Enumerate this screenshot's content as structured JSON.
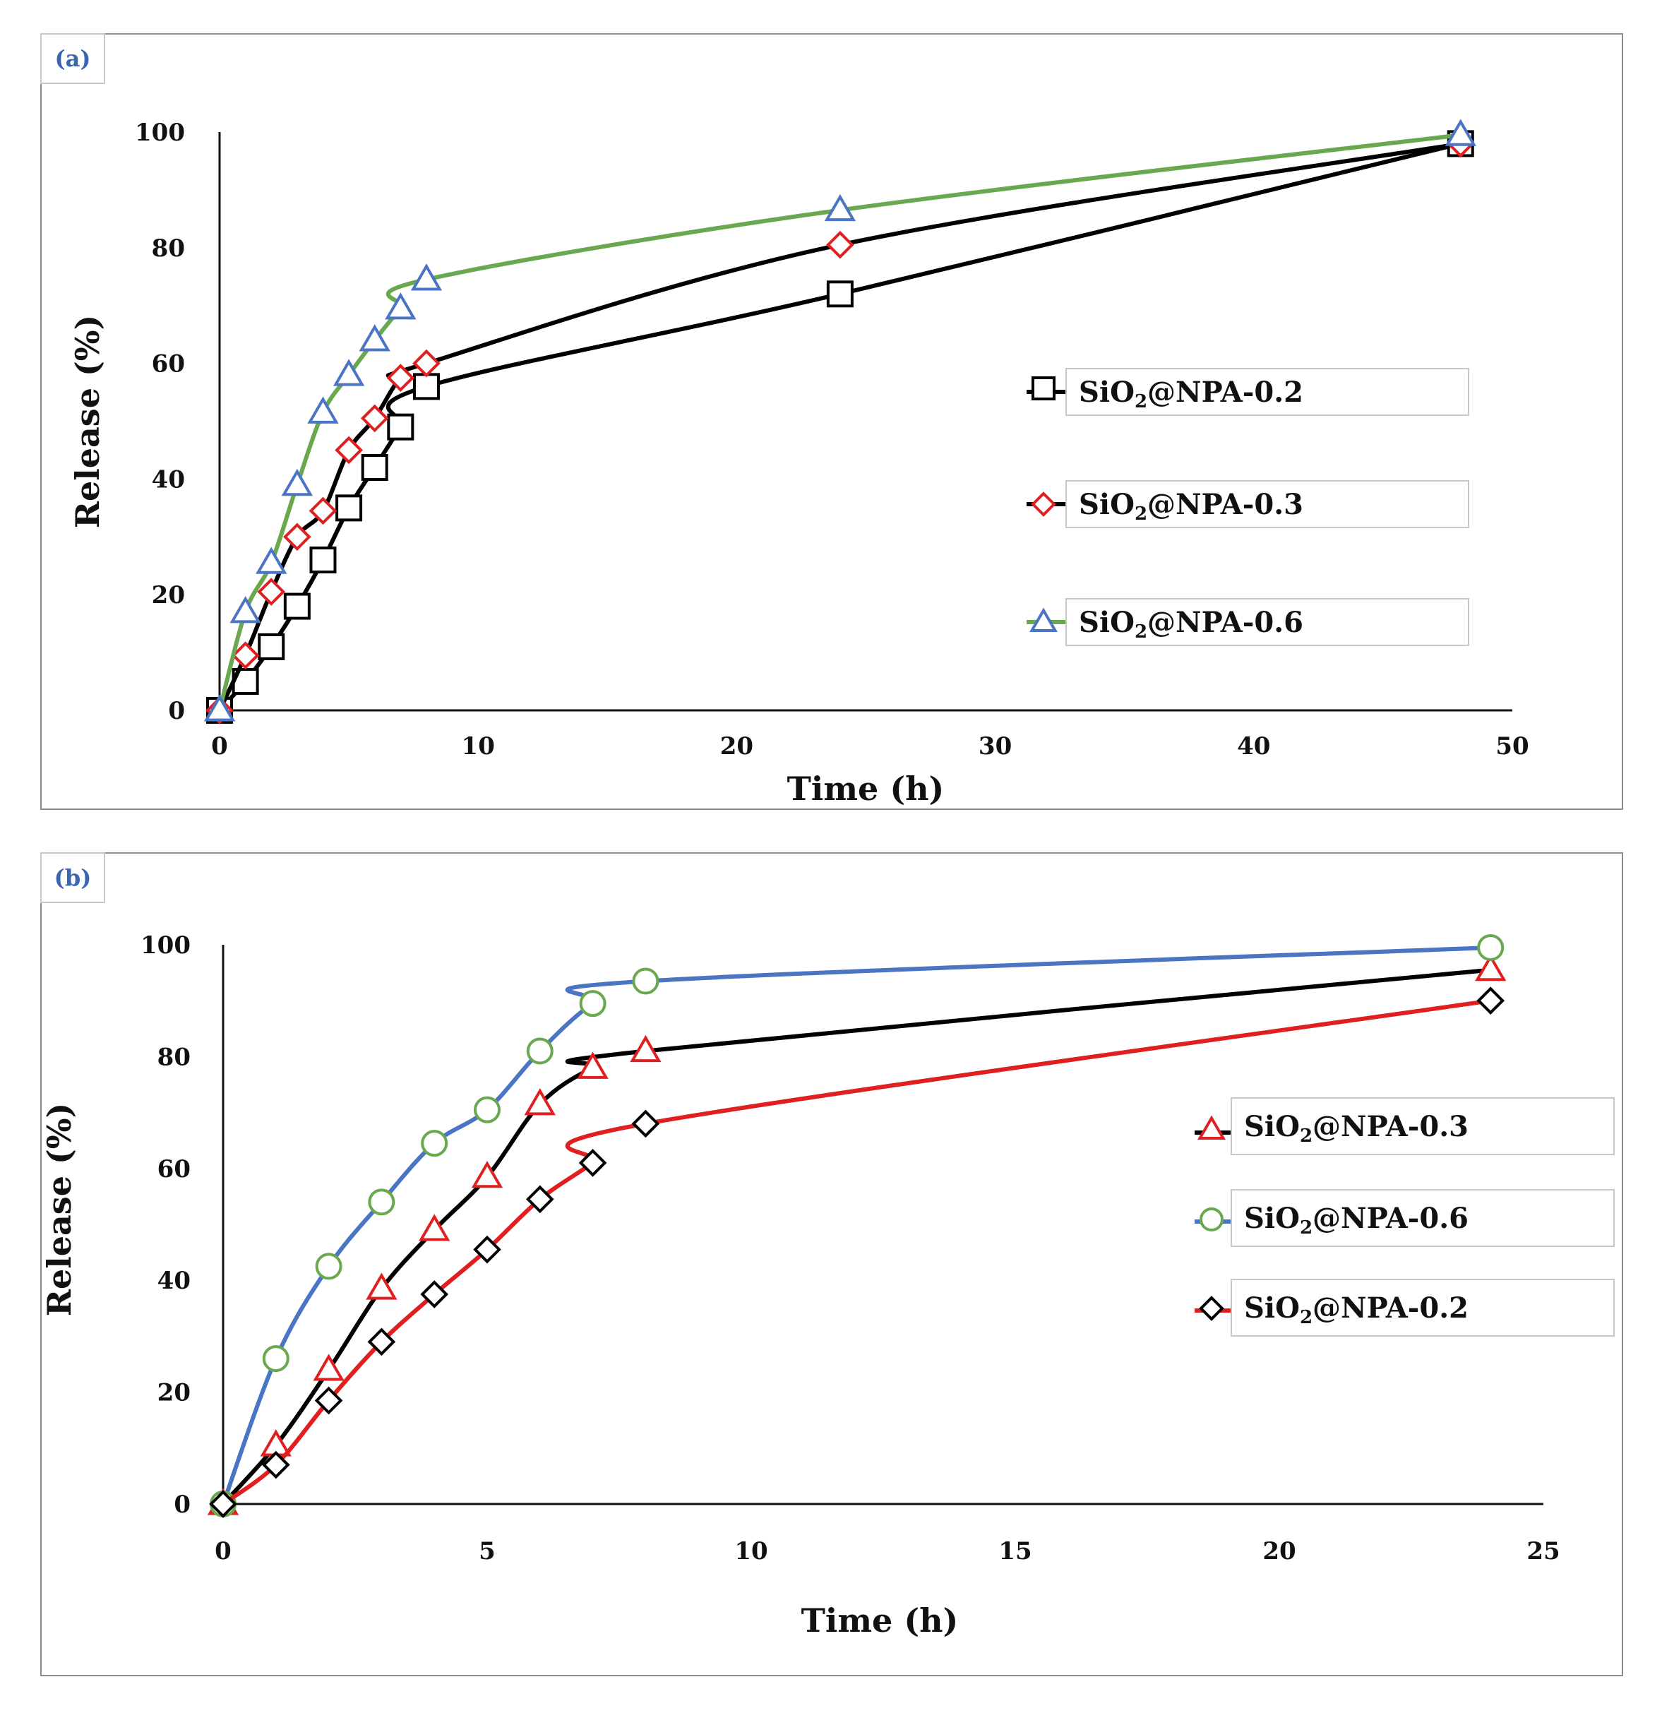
{
  "chart_data": [
    {
      "panel": "(a)",
      "type": "line",
      "xlabel": "Time (h)",
      "ylabel": "Release (%)",
      "xlim": [
        0,
        50
      ],
      "ylim": [
        0,
        100
      ],
      "xticks": [
        "0",
        "10",
        "20",
        "30",
        "40",
        "50"
      ],
      "yticks": [
        "0",
        "20",
        "40",
        "60",
        "80",
        "100"
      ],
      "legend_position": "right",
      "series": [
        {
          "name": "SiO",
          "sub": "2",
          "suffix": "@NPA-0.2",
          "marker": "square",
          "line": "#000000",
          "marker_color": "#000000",
          "x": [
            0,
            1,
            2,
            3,
            4,
            5,
            6,
            7,
            8,
            24,
            48
          ],
          "y": [
            0,
            5,
            11,
            18,
            26,
            35,
            42,
            49,
            56,
            72,
            98
          ]
        },
        {
          "name": "SiO",
          "sub": "2",
          "suffix": "@NPA-0.3",
          "marker": "diamond",
          "line": "#000000",
          "marker_color": "#e02020",
          "x": [
            0,
            1,
            2,
            3,
            4,
            5,
            6,
            7,
            8,
            24,
            48
          ],
          "y": [
            0,
            9.5,
            20.5,
            30,
            34.5,
            45,
            50.5,
            57.5,
            60,
            80.5,
            98
          ]
        },
        {
          "name": "SiO",
          "sub": "2",
          "suffix": "@NPA-0.6",
          "marker": "triangle",
          "line": "#6aa84f",
          "marker_color": "#4a74c4",
          "x": [
            0,
            1,
            2,
            3,
            4,
            5,
            6,
            7,
            8,
            24,
            48
          ],
          "y": [
            0,
            17,
            25.5,
            39,
            51.5,
            58,
            64,
            69.5,
            74.5,
            86.5,
            99.5
          ]
        }
      ]
    },
    {
      "panel": "(b)",
      "type": "line",
      "xlabel": "Time (h)",
      "ylabel": "Release (%)",
      "xlim": [
        0,
        25
      ],
      "ylim": [
        0,
        100
      ],
      "xticks": [
        "0",
        "5",
        "10",
        "15",
        "20",
        "25"
      ],
      "yticks": [
        "0",
        "20",
        "40",
        "60",
        "80",
        "100"
      ],
      "legend_position": "right",
      "series": [
        {
          "name": "SiO",
          "sub": "2",
          "suffix": "@NPA-0.3",
          "marker": "triangle",
          "line": "#000000",
          "marker_color": "#e02020",
          "x": [
            0,
            1,
            2,
            3,
            4,
            5,
            6,
            7,
            8,
            24
          ],
          "y": [
            0,
            10.5,
            24,
            38.5,
            49,
            58.5,
            71.5,
            78,
            81,
            95.5
          ]
        },
        {
          "name": "SiO",
          "sub": "2",
          "suffix": "@NPA-0.6",
          "marker": "circle",
          "line": "#4a74c4",
          "marker_color": "#6aa84f",
          "x": [
            0,
            1,
            2,
            3,
            4,
            5,
            6,
            7,
            8,
            24
          ],
          "y": [
            0,
            26,
            42.5,
            54,
            64.5,
            70.5,
            81,
            89.5,
            93.5,
            99.5
          ]
        },
        {
          "name": "SiO",
          "sub": "2",
          "suffix": "@NPA-0.2",
          "marker": "diamond",
          "line": "#e02020",
          "marker_color": "#000000",
          "x": [
            0,
            1,
            2,
            3,
            4,
            5,
            6,
            7,
            8,
            24
          ],
          "y": [
            0,
            7,
            18.5,
            29,
            37.5,
            45.5,
            54.5,
            61,
            68,
            90
          ]
        }
      ]
    }
  ]
}
